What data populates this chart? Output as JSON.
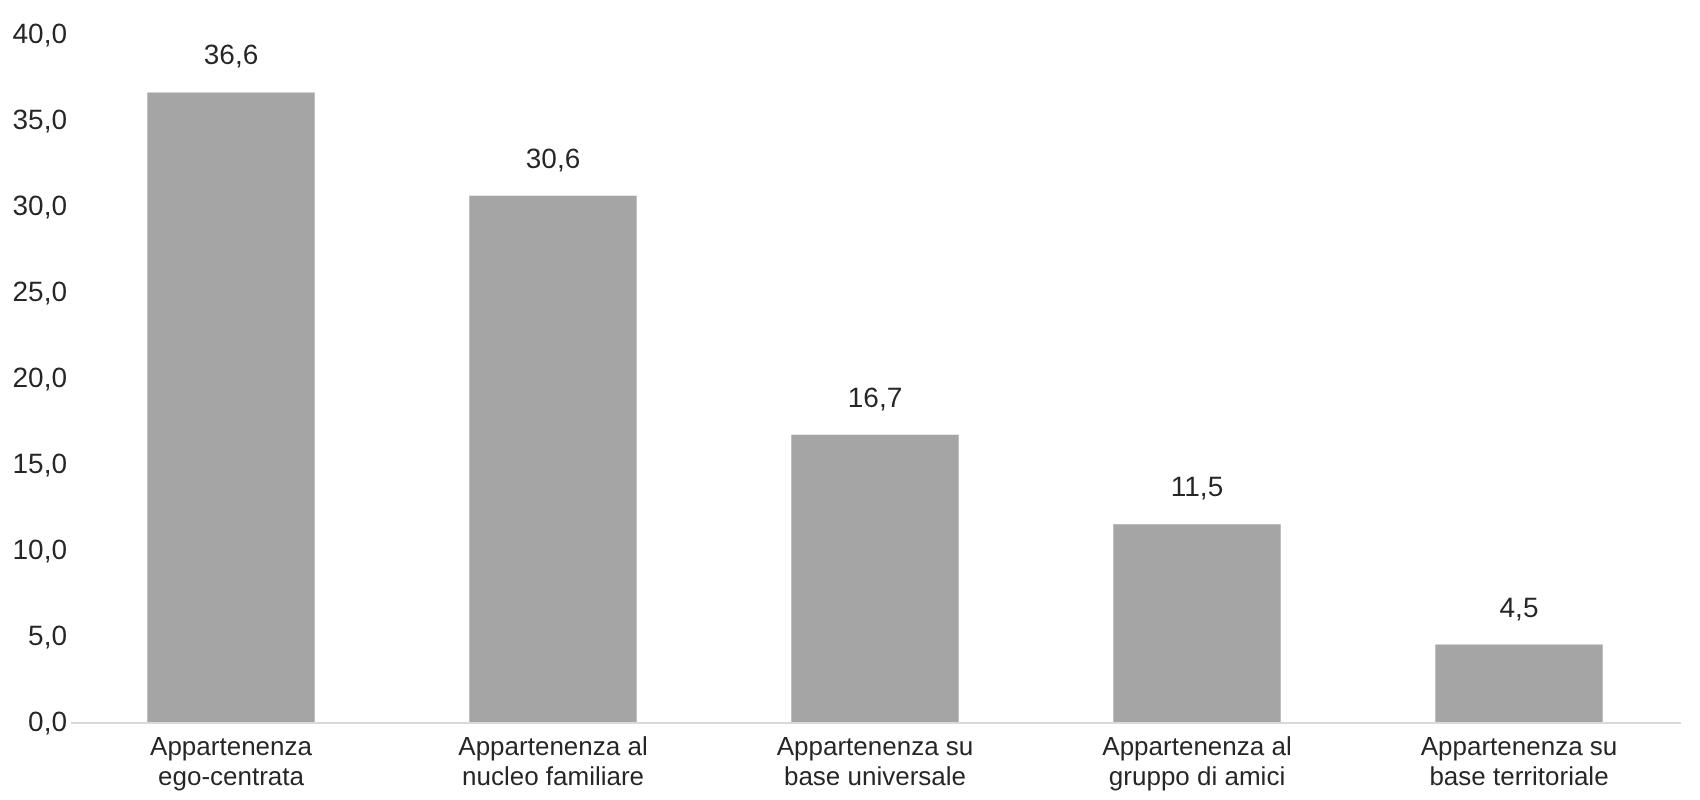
{
  "chart_data": {
    "type": "bar",
    "categories": [
      "Appartenenza\nego-centrata",
      "Appartenenza al\nnucleo familiare",
      "Appartenenza su\nbase universale",
      "Appartenenza al\ngruppo di amici",
      "Appartenenza su\nbase territoriale"
    ],
    "values": [
      36.6,
      30.6,
      16.7,
      11.5,
      4.5
    ],
    "value_labels": [
      "36,6",
      "30,6",
      "16,7",
      "11,5",
      "4,5"
    ],
    "color": "#a5a5a5",
    "ylim": [
      0,
      40
    ],
    "yticks": [
      {
        "value": 0,
        "label": "0,0"
      },
      {
        "value": 5,
        "label": "5,0"
      },
      {
        "value": 10,
        "label": "10,0"
      },
      {
        "value": 15,
        "label": "15,0"
      },
      {
        "value": 20,
        "label": "20,0"
      },
      {
        "value": 25,
        "label": "25,0"
      },
      {
        "value": 30,
        "label": "30,0"
      },
      {
        "value": 35,
        "label": "35,0"
      },
      {
        "value": 40,
        "label": "40,0"
      }
    ],
    "grid": false
  }
}
